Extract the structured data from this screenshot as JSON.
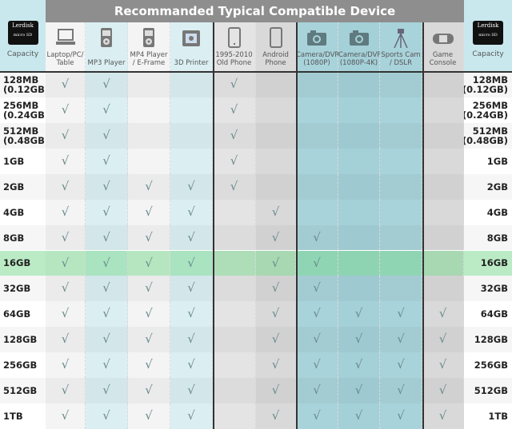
{
  "title": "Recommanded Typical Compatible Device",
  "capacity_label": "Capacity",
  "brand": "Lerdisk",
  "card_sub": "micro SD",
  "check_symbol": "√",
  "devices": [
    {
      "label": "Laptop/PC/ Table",
      "icon": "laptop-icon",
      "color": "#f4f4f4"
    },
    {
      "label": "MP3 Player",
      "icon": "mp3-player-icon",
      "color": "#dbeff3"
    },
    {
      "label": "MP4 Player / E-Frame",
      "icon": "mp4-player-icon",
      "color": "#f4f4f4"
    },
    {
      "label": "3D Printer",
      "icon": "3d-printer-icon",
      "color": "#dbeff3"
    },
    {
      "label": "1995-2010 Old Phone",
      "icon": "old-phone-icon",
      "color": "#e4e4e4"
    },
    {
      "label": "Android Phone",
      "icon": "android-phone-icon",
      "color": "#d9d9d9"
    },
    {
      "label": "Camera/DVR (1080P)",
      "icon": "camera-icon",
      "color": "#a9d3da"
    },
    {
      "label": "Camera/DVR (1080P-4K)",
      "icon": "camera-4k-icon",
      "color": "#a4d0d8"
    },
    {
      "label": "Sports Cam / DSLR",
      "icon": "tripod-icon",
      "color": "#a9d3da"
    },
    {
      "label": "Game Console",
      "icon": "game-console-icon",
      "color": "#d9d9d9"
    }
  ],
  "highlight_color": "#8fe0a0",
  "rows": [
    {
      "capacity": "128MB (0.12GB)",
      "checks": [
        1,
        1,
        0,
        0,
        1,
        0,
        0,
        0,
        0,
        0
      ]
    },
    {
      "capacity": "256MB (0.24GB)",
      "checks": [
        1,
        1,
        0,
        0,
        1,
        0,
        0,
        0,
        0,
        0
      ]
    },
    {
      "capacity": "512MB (0.48GB)",
      "checks": [
        1,
        1,
        0,
        0,
        1,
        0,
        0,
        0,
        0,
        0
      ]
    },
    {
      "capacity": "1GB",
      "checks": [
        1,
        1,
        0,
        0,
        1,
        0,
        0,
        0,
        0,
        0
      ]
    },
    {
      "capacity": "2GB",
      "checks": [
        1,
        1,
        1,
        1,
        1,
        0,
        0,
        0,
        0,
        0
      ]
    },
    {
      "capacity": "4GB",
      "checks": [
        1,
        1,
        1,
        1,
        0,
        1,
        0,
        0,
        0,
        0
      ]
    },
    {
      "capacity": "8GB",
      "checks": [
        1,
        1,
        1,
        1,
        0,
        1,
        1,
        0,
        0,
        0
      ]
    },
    {
      "capacity": "16GB",
      "checks": [
        1,
        1,
        1,
        1,
        0,
        1,
        1,
        0,
        0,
        0
      ],
      "highlight": true
    },
    {
      "capacity": "32GB",
      "checks": [
        1,
        1,
        1,
        1,
        0,
        1,
        1,
        0,
        0,
        0
      ]
    },
    {
      "capacity": "64GB",
      "checks": [
        1,
        1,
        1,
        1,
        0,
        1,
        1,
        1,
        1,
        1
      ]
    },
    {
      "capacity": "128GB",
      "checks": [
        1,
        1,
        1,
        1,
        0,
        1,
        1,
        1,
        1,
        1
      ]
    },
    {
      "capacity": "256GB",
      "checks": [
        1,
        1,
        1,
        1,
        0,
        1,
        1,
        1,
        1,
        1
      ]
    },
    {
      "capacity": "512GB",
      "checks": [
        1,
        1,
        1,
        1,
        0,
        1,
        1,
        1,
        1,
        1
      ]
    },
    {
      "capacity": "1TB",
      "checks": [
        1,
        1,
        1,
        1,
        0,
        1,
        1,
        1,
        1,
        1
      ]
    }
  ]
}
